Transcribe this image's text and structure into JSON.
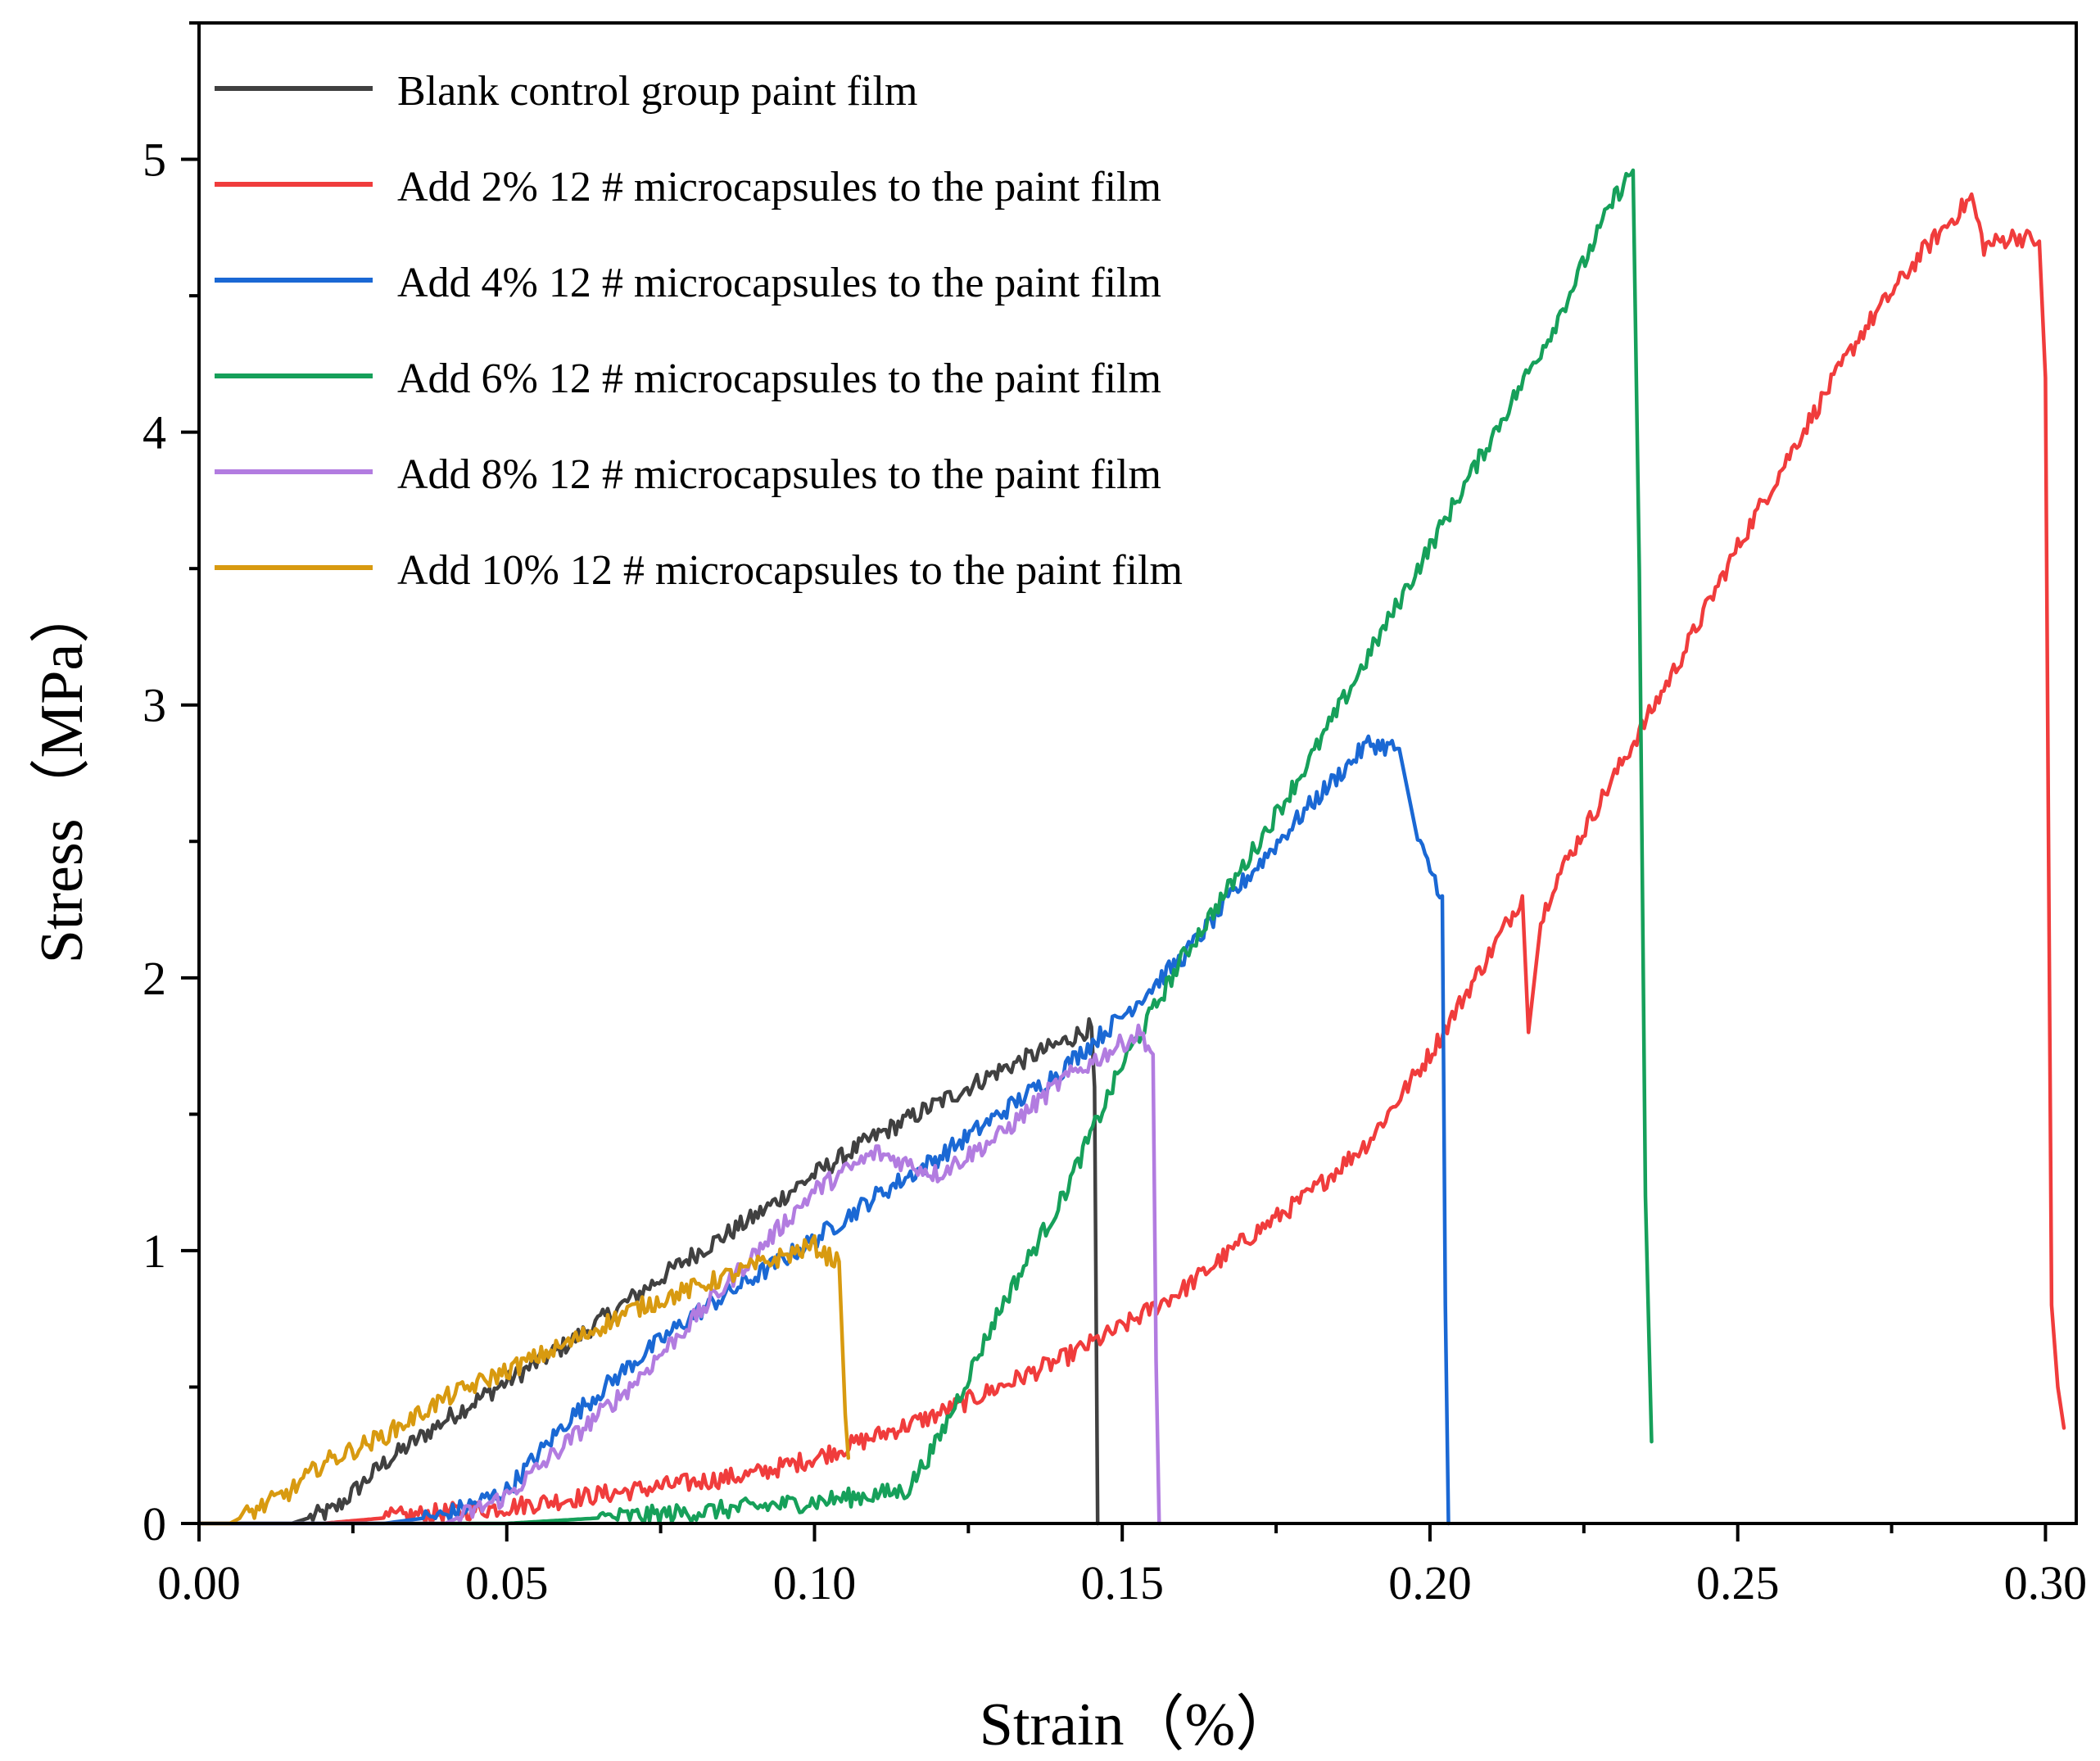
{
  "chart_data": {
    "type": "line",
    "title": "",
    "xlabel": "Strain（%）",
    "ylabel": "Stress（MPa）",
    "xlim": [
      0,
      0.305
    ],
    "ylim": [
      0,
      5.5
    ],
    "xticks": [
      0.0,
      0.05,
      0.1,
      0.15,
      0.2,
      0.25,
      0.3
    ],
    "xtick_labels": [
      "0.00",
      "0.05",
      "0.10",
      "0.15",
      "0.20",
      "0.25",
      "0.30"
    ],
    "yticks": [
      0,
      1,
      2,
      3,
      4,
      5
    ],
    "ytick_labels": [
      "0",
      "1",
      "2",
      "3",
      "4",
      "5"
    ],
    "grid": false,
    "legend_position": "top-left",
    "series": [
      {
        "name": "Blank control group paint film",
        "color": "#404040",
        "x": [
          0,
          0.015,
          0.022,
          0.03,
          0.04,
          0.05,
          0.06,
          0.07,
          0.08,
          0.09,
          0.1,
          0.11,
          0.12,
          0.13,
          0.14,
          0.145,
          0.1455,
          0.146
        ],
        "y": [
          0,
          0,
          0.05,
          0.22,
          0.38,
          0.52,
          0.66,
          0.82,
          0.98,
          1.12,
          1.28,
          1.42,
          1.54,
          1.66,
          1.76,
          1.82,
          1.6,
          0
        ]
      },
      {
        "name": "Add 2% 12 # microcapsules to the paint film",
        "color": "#f03c3c",
        "x": [
          0,
          0.02,
          0.03,
          0.05,
          0.07,
          0.09,
          0.1,
          0.11,
          0.12,
          0.13,
          0.14,
          0.15,
          0.16,
          0.17,
          0.18,
          0.19,
          0.2,
          0.21,
          0.215,
          0.216,
          0.218,
          0.22,
          0.23,
          0.24,
          0.25,
          0.26,
          0.27,
          0.28,
          0.288,
          0.29,
          0.295,
          0.299,
          0.3,
          0.301,
          0.302,
          0.303
        ],
        "y": [
          0,
          0,
          0.02,
          0.06,
          0.12,
          0.18,
          0.24,
          0.32,
          0.4,
          0.5,
          0.6,
          0.72,
          0.86,
          1.04,
          1.2,
          1.4,
          1.72,
          2.1,
          2.3,
          1.8,
          2.2,
          2.34,
          2.74,
          3.14,
          3.58,
          3.98,
          4.36,
          4.66,
          4.86,
          4.68,
          4.72,
          4.7,
          4.2,
          0.8,
          0.5,
          0.35
        ]
      },
      {
        "name": "Add 4% 12 # microcapsules to the paint film",
        "color": "#1a68d4",
        "x": [
          0,
          0.03,
          0.04,
          0.05,
          0.06,
          0.07,
          0.08,
          0.09,
          0.1,
          0.11,
          0.12,
          0.13,
          0.14,
          0.15,
          0.16,
          0.17,
          0.18,
          0.19,
          0.195,
          0.198,
          0.2,
          0.202,
          0.2025,
          0.203
        ],
        "y": [
          0,
          0,
          0.03,
          0.12,
          0.38,
          0.58,
          0.76,
          0.9,
          1.04,
          1.2,
          1.34,
          1.5,
          1.66,
          1.86,
          2.08,
          2.36,
          2.62,
          2.86,
          2.84,
          2.5,
          2.4,
          2.3,
          0.8,
          0
        ]
      },
      {
        "name": "Add 6% 12 # microcapsules to the paint film",
        "color": "#16a05a",
        "x": [
          0,
          0.05,
          0.08,
          0.1,
          0.115,
          0.12,
          0.13,
          0.14,
          0.15,
          0.16,
          0.17,
          0.18,
          0.19,
          0.2,
          0.21,
          0.22,
          0.23,
          0.233,
          0.234,
          0.235,
          0.236
        ],
        "y": [
          0,
          0,
          0.04,
          0.08,
          0.12,
          0.3,
          0.78,
          1.18,
          1.68,
          2.08,
          2.42,
          2.78,
          3.18,
          3.58,
          3.98,
          4.38,
          4.86,
          4.96,
          3.5,
          1.2,
          0.3
        ]
      },
      {
        "name": "Add 8% 12 # microcapsules to the paint film",
        "color": "#b27ce0",
        "x": [
          0,
          0.04,
          0.05,
          0.06,
          0.07,
          0.08,
          0.09,
          0.1,
          0.11,
          0.12,
          0.13,
          0.14,
          0.15,
          0.153,
          0.155,
          0.1555,
          0.156
        ],
        "y": [
          0,
          0,
          0.1,
          0.3,
          0.5,
          0.74,
          0.98,
          1.22,
          1.36,
          1.28,
          1.42,
          1.62,
          1.76,
          1.8,
          1.72,
          0.6,
          0
        ]
      },
      {
        "name": "Add 10% 12 # microcapsules to the paint film",
        "color": "#d89a10",
        "x": [
          0,
          0.005,
          0.015,
          0.02,
          0.03,
          0.04,
          0.05,
          0.06,
          0.07,
          0.08,
          0.09,
          0.1,
          0.102,
          0.104,
          0.105,
          0.1055
        ],
        "y": [
          0,
          0,
          0.12,
          0.22,
          0.32,
          0.46,
          0.56,
          0.66,
          0.78,
          0.86,
          0.94,
          1.02,
          0.98,
          0.96,
          0.4,
          0.24
        ]
      }
    ]
  }
}
